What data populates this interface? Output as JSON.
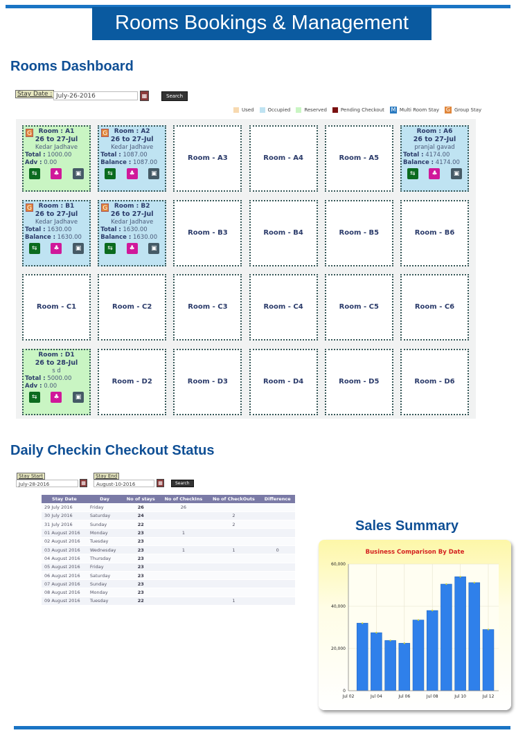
{
  "header": {
    "title": "Rooms Bookings & Management"
  },
  "dashboard": {
    "title": "Rooms Dashboard",
    "stay_date_label": "Stay Date :",
    "stay_date_value": "July-26-2016",
    "calendar_icon": "calendar-icon",
    "search_label": "Search",
    "legend": [
      {
        "label": "Used",
        "color": "#f7d9b0"
      },
      {
        "label": "Occupied",
        "color": "#bfe3f2"
      },
      {
        "label": "Reserved",
        "color": "#c9f5c3"
      },
      {
        "label": "Pending Checkout",
        "color": "#7a1010"
      },
      {
        "label": "Multi Room Stay",
        "color": "#2a7ac0",
        "glyph": "M"
      },
      {
        "label": "Group Stay",
        "color": "#e0863a",
        "glyph": "G"
      }
    ],
    "rooms": [
      {
        "name": "Room : A1",
        "status": "reserved",
        "group": "G",
        "dates": "26 to 27-Jul",
        "guest": "Kedar Jadhave",
        "line1_label": "Total :",
        "line1_value": "1000.00",
        "line2_label": "Adv :",
        "line2_value": "0.00"
      },
      {
        "name": "Room : A2",
        "status": "occupied",
        "group": "G",
        "dates": "26 to 27-Jul",
        "guest": "Kedar Jadhave",
        "line1_label": "Total :",
        "line1_value": "1087.00",
        "line2_label": "Balance :",
        "line2_value": "1087.00"
      },
      {
        "name": "Room - A3"
      },
      {
        "name": "Room - A4"
      },
      {
        "name": "Room - A5"
      },
      {
        "name": "Room : A6",
        "status": "occupied",
        "dates": "26 to 27-Jul",
        "guest": "pranjal gavad",
        "line1_label": "Total :",
        "line1_value": "4174.00",
        "line2_label": "Balance :",
        "line2_value": "4174.00"
      },
      {
        "name": "Room : B1",
        "status": "occupied",
        "group": "G",
        "dates": "26 to 27-Jul",
        "guest": "Kedar Jadhave",
        "line1_label": "Total :",
        "line1_value": "1630.00",
        "line2_label": "Balance :",
        "line2_value": "1630.00"
      },
      {
        "name": "Room : B2",
        "status": "occupied",
        "group": "G",
        "dates": "26 to 27-Jul",
        "guest": "Kedar Jadhave",
        "line1_label": "Total :",
        "line1_value": "1630.00",
        "line2_label": "Balance :",
        "line2_value": "1630.00"
      },
      {
        "name": "Room - B3"
      },
      {
        "name": "Room - B4"
      },
      {
        "name": "Room - B5"
      },
      {
        "name": "Room - B6"
      },
      {
        "name": "Room - C1"
      },
      {
        "name": "Room - C2"
      },
      {
        "name": "Room - C3"
      },
      {
        "name": "Room - C4"
      },
      {
        "name": "Room - C5"
      },
      {
        "name": "Room - C6"
      },
      {
        "name": "Room : D1",
        "status": "reserved",
        "dates": "26 to 28-Jul",
        "guest": "s d",
        "line1_label": "Total :",
        "line1_value": "5000.00",
        "line2_label": "Adv :",
        "line2_value": "0.00"
      },
      {
        "name": "Room - D2"
      },
      {
        "name": "Room - D3"
      },
      {
        "name": "Room - D4"
      },
      {
        "name": "Room - D5"
      },
      {
        "name": "Room - D6"
      }
    ]
  },
  "daily": {
    "title": "Daily Checkin Checkout Status",
    "start_label": "Stay Start",
    "start_value": "July-28-2016",
    "end_label": "Stay End",
    "end_value": "August-10-2016",
    "search_label": "Search",
    "columns": [
      "Stay Date",
      "Day",
      "No of stays",
      "No of CheckIns",
      "No of CheckOuts",
      "Difference"
    ],
    "rows": [
      [
        "29 July 2016",
        "Friday",
        "26",
        "26",
        "",
        ""
      ],
      [
        "30 July 2016",
        "Saturday",
        "24",
        "",
        "2",
        ""
      ],
      [
        "31 July 2016",
        "Sunday",
        "22",
        "",
        "2",
        ""
      ],
      [
        "01 August 2016",
        "Monday",
        "23",
        "1",
        "",
        ""
      ],
      [
        "02 August 2016",
        "Tuesday",
        "23",
        "",
        "",
        ""
      ],
      [
        "03 August 2016",
        "Wednesday",
        "23",
        "1",
        "1",
        "0"
      ],
      [
        "04 August 2016",
        "Thursday",
        "23",
        "",
        "",
        ""
      ],
      [
        "05 August 2016",
        "Friday",
        "23",
        "",
        "",
        ""
      ],
      [
        "06 August 2016",
        "Saturday",
        "23",
        "",
        "",
        ""
      ],
      [
        "07 August 2016",
        "Sunday",
        "23",
        "",
        "",
        ""
      ],
      [
        "08 August 2016",
        "Monday",
        "23",
        "",
        "",
        ""
      ],
      [
        "09 August 2016",
        "Tuesday",
        "22",
        "",
        "1",
        ""
      ]
    ]
  },
  "sales": {
    "title": "Sales Summary"
  },
  "chart_data": {
    "type": "bar",
    "title": "Business Comparison By Date",
    "categories": [
      "Jul 03",
      "Jul 04",
      "Jul 05",
      "Jul 06",
      "Jul 07",
      "Jul 08",
      "Jul 09",
      "Jul 10",
      "Jul 11",
      "Jul 12"
    ],
    "values": [
      32000,
      27500,
      23800,
      22500,
      33500,
      38000,
      50500,
      54000,
      51200,
      29000
    ],
    "x_tick_labels": [
      "Jul 02",
      "Jul 04",
      "Jul 06",
      "Jul 08",
      "Jul 10",
      "Jul 12"
    ],
    "y_tick_labels": [
      "0",
      "20,000",
      "40,000",
      "60,000"
    ],
    "ylim": [
      0,
      60000
    ],
    "bar_color": "#2f80ea",
    "grid": true
  }
}
